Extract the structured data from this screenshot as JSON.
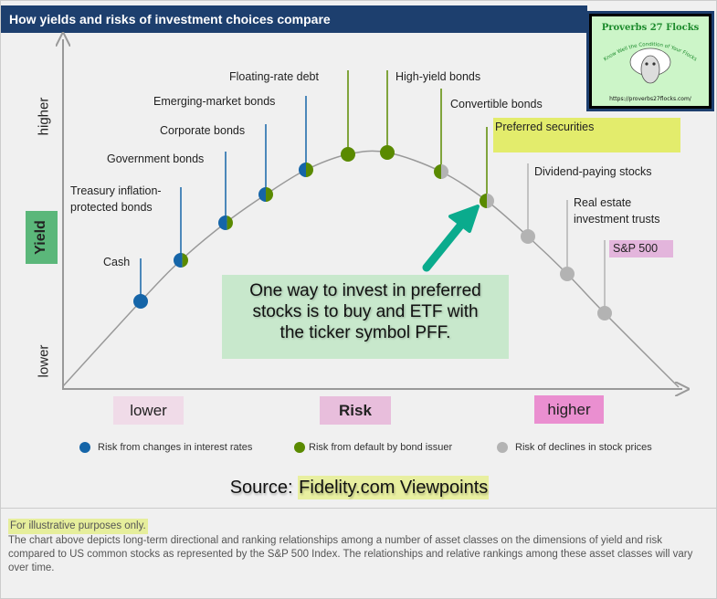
{
  "header": {
    "title": "How yields and risks of investment choices compare"
  },
  "logo": {
    "title": "Proverbs 27 Flocks",
    "tagline": "Know Well the Condition of Your Flocks",
    "url": "https://proverbs27flocks.com/"
  },
  "colors": {
    "interest_rate": "#1565a8",
    "default": "#5a8a00",
    "stock": "#b3b3b3",
    "header": "#1d3f6e",
    "callout": "#c8e8cc",
    "arrow": "#0aab8d"
  },
  "y_axis": {
    "label": "Yield",
    "higher": "higher",
    "lower": "lower"
  },
  "x_axis": {
    "label": "Risk",
    "lower": "lower",
    "higher": "higher"
  },
  "assets": [
    {
      "name": "Cash",
      "risk_mix": {
        "interest_rate": 1,
        "default": 0,
        "stock": 0
      }
    },
    {
      "name": "Treasury inflation-protected bonds",
      "line1": "Treasury inflation-",
      "line2": "protected bonds",
      "risk_mix": {
        "interest_rate": 0.6,
        "default": 0.4,
        "stock": 0
      }
    },
    {
      "name": "Government bonds",
      "risk_mix": {
        "interest_rate": 0.6,
        "default": 0.4,
        "stock": 0
      }
    },
    {
      "name": "Corporate bonds",
      "risk_mix": {
        "interest_rate": 0.5,
        "default": 0.5,
        "stock": 0
      }
    },
    {
      "name": "Emerging-market bonds",
      "risk_mix": {
        "interest_rate": 0.5,
        "default": 0.5,
        "stock": 0
      }
    },
    {
      "name": "Floating-rate debt",
      "risk_mix": {
        "interest_rate": 0,
        "default": 1,
        "stock": 0
      }
    },
    {
      "name": "High-yield bonds",
      "risk_mix": {
        "interest_rate": 0,
        "default": 1,
        "stock": 0
      }
    },
    {
      "name": "Convertible bonds",
      "risk_mix": {
        "interest_rate": 0,
        "default": 0.5,
        "stock": 0.5
      }
    },
    {
      "name": "Preferred securities",
      "risk_mix": {
        "interest_rate": 0,
        "default": 0.5,
        "stock": 0.5
      }
    },
    {
      "name": "Dividend-paying stocks",
      "risk_mix": {
        "interest_rate": 0,
        "default": 0,
        "stock": 1
      }
    },
    {
      "name": "Real estate investment trusts",
      "line1": "Real estate",
      "line2": "investment trusts",
      "risk_mix": {
        "interest_rate": 0,
        "default": 0,
        "stock": 1
      }
    },
    {
      "name": "S&P 500",
      "risk_mix": {
        "interest_rate": 0,
        "default": 0,
        "stock": 1
      }
    }
  ],
  "legend": [
    {
      "label": "Risk from changes in interest rates",
      "color": "#1565a8"
    },
    {
      "label": "Risk from default by bond issuer",
      "color": "#5a8a00"
    },
    {
      "label": "Risk of declines in stock prices",
      "color": "#b3b3b3"
    }
  ],
  "callout": {
    "line1": "One way to invest in preferred",
    "line2": "stocks is to buy and ETF with",
    "line3": "the ticker symbol PFF."
  },
  "source": {
    "prefix": "Source: ",
    "name": "Fidelity.com Viewpoints"
  },
  "footer": {
    "note": "For illustrative purposes only.",
    "body": "The chart above depicts long-term directional and ranking relationships among a number of asset classes on the dimensions of yield and risk compared to US common stocks as represented by the S&P 500 Index. The relationships and relative rankings among these asset classes will vary over time."
  }
}
